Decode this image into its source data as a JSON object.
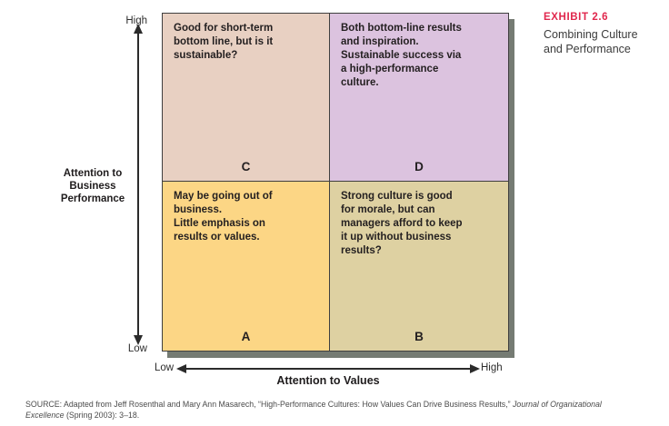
{
  "exhibit": {
    "label": "EXHIBIT 2.6",
    "title": "Combining Culture\nand Performance"
  },
  "chart_data": {
    "type": "quadrant_matrix",
    "x_axis": {
      "label": "Attention to Values",
      "min_label": "Low",
      "max_label": "High"
    },
    "y_axis": {
      "label": "Attention to\nBusiness\nPerformance",
      "min_label": "Low",
      "max_label": "High"
    },
    "quadrants": {
      "C": {
        "letter": "C",
        "position": "top-left",
        "x_value": "low values",
        "y_value": "high performance",
        "text": "Good for short-term\nbottom line, but is it\nsustainable?",
        "color": "#e8d0c2"
      },
      "D": {
        "letter": "D",
        "position": "top-right",
        "x_value": "high values",
        "y_value": "high performance",
        "text": "Both bottom-line results\nand inspiration.\nSustainable success via\na high-performance\nculture.",
        "color": "#dcc3df"
      },
      "A": {
        "letter": "A",
        "position": "bottom-left",
        "x_value": "low values",
        "y_value": "low performance",
        "text": "May be going out of\nbusiness.\nLittle emphasis on\nresults or values.",
        "color": "#fcd685"
      },
      "B": {
        "letter": "B",
        "position": "bottom-right",
        "x_value": "high values",
        "y_value": "low performance",
        "text": "Strong culture is good\nfor morale, but can\nmanagers afford to keep\nit up without business\nresults?",
        "color": "#ded1a2"
      }
    }
  },
  "source": {
    "line1_regular": "SOURCE: Adapted from Jeff Rosenthal and Mary Ann Masarech, “High-Performance Cultures: How Values Can Drive Business Results,” ",
    "line1_italic": "Journal of Organizational",
    "line2_italic": "Excellence",
    "line2_regular": " (Spring 2003): 3–18."
  },
  "colors": {
    "exhibit_label": "#e0274d",
    "matrix_border": "#3f3f3f",
    "matrix_shadow": "#757b73",
    "body_text": "#231f20"
  }
}
